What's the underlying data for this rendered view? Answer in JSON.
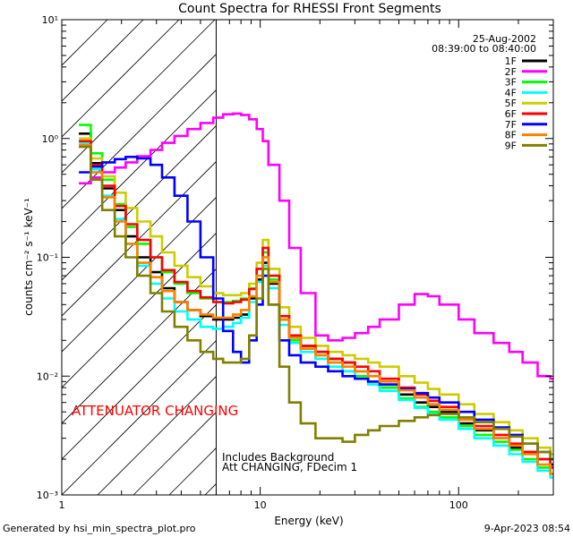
{
  "chart_data": {
    "type": "line",
    "title": "Count Spectra for RHESSI Front Segments",
    "xlabel": "Energy (keV)",
    "ylabel": "counts cm⁻² s⁻¹ keV⁻¹",
    "x_scale": "log",
    "y_scale": "log",
    "xlim": [
      1,
      300
    ],
    "ylim": [
      0.001,
      10
    ],
    "x_ticks": [
      {
        "value": 1,
        "label": "1"
      },
      {
        "value": 10,
        "label": "10"
      },
      {
        "value": 100,
        "label": "100"
      }
    ],
    "y_ticks": [
      {
        "value": 0.001,
        "label": "10⁻³"
      },
      {
        "value": 0.01,
        "label": "10⁻²"
      },
      {
        "value": 0.1,
        "label": "10⁻¹"
      },
      {
        "value": 1,
        "label": "10⁰"
      },
      {
        "value": 10,
        "label": "10¹"
      }
    ],
    "date": "25-Aug-2002",
    "time_range": "08:39:00 to 08:40:00",
    "hatched_region": [
      1,
      6
    ],
    "annotations": {
      "attenuator": "ATTENUATOR CHANGING",
      "background": "Includes Background",
      "att_state": "Att CHANGING, FDecim 1"
    },
    "footer_left": "Generated by hsi_min_spectra_plot.pro",
    "footer_right": "9-Apr-2023 08:54",
    "series": [
      {
        "name": "1F",
        "color": "#000000",
        "x": [
          1.22,
          1.4,
          1.6,
          1.85,
          2.1,
          2.4,
          2.8,
          3.2,
          3.7,
          4.3,
          5.0,
          5.8,
          6.5,
          7.3,
          8.0,
          8.8,
          9.6,
          10.3,
          11.0,
          12.5,
          14,
          16,
          19,
          22,
          26,
          30,
          35,
          40,
          50,
          60,
          70,
          80,
          100,
          120,
          150,
          180,
          210,
          250,
          290
        ],
        "y": [
          1.1,
          0.62,
          0.38,
          0.25,
          0.15,
          0.1,
          0.075,
          0.055,
          0.042,
          0.036,
          0.032,
          0.03,
          0.03,
          0.031,
          0.033,
          0.045,
          0.065,
          0.09,
          0.06,
          0.03,
          0.022,
          0.018,
          0.016,
          0.014,
          0.013,
          0.011,
          0.009,
          0.008,
          0.007,
          0.006,
          0.0055,
          0.005,
          0.004,
          0.0035,
          0.003,
          0.0025,
          0.0023,
          0.002,
          0.0018
        ]
      },
      {
        "name": "2F",
        "color": "#ff00ff",
        "x": [
          1.22,
          1.4,
          1.6,
          1.85,
          2.1,
          2.4,
          2.8,
          3.2,
          3.7,
          4.3,
          5.0,
          5.8,
          6.5,
          7.3,
          8.0,
          8.8,
          9.6,
          10.3,
          11.0,
          12.5,
          14,
          16,
          19,
          22,
          26,
          30,
          35,
          40,
          50,
          60,
          70,
          80,
          100,
          120,
          150,
          180,
          210,
          250,
          290
        ],
        "y": [
          0.42,
          0.47,
          0.52,
          0.57,
          0.63,
          0.71,
          0.8,
          0.92,
          1.05,
          1.2,
          1.35,
          1.5,
          1.6,
          1.62,
          1.58,
          1.45,
          1.2,
          0.95,
          0.6,
          0.3,
          0.12,
          0.05,
          0.022,
          0.02,
          0.021,
          0.023,
          0.026,
          0.03,
          0.04,
          0.049,
          0.047,
          0.04,
          0.03,
          0.023,
          0.019,
          0.016,
          0.013,
          0.01,
          0.0095
        ]
      },
      {
        "name": "3F",
        "color": "#00ff00",
        "x": [
          1.22,
          1.4,
          1.6,
          1.85,
          2.1,
          2.4,
          2.8,
          3.2,
          3.7,
          4.3,
          5.0,
          5.8,
          6.5,
          7.3,
          8.0,
          8.8,
          9.6,
          10.3,
          11.0,
          12.5,
          14,
          16,
          19,
          22,
          26,
          30,
          35,
          40,
          50,
          60,
          70,
          80,
          100,
          120,
          150,
          180,
          210,
          250,
          290
        ],
        "y": [
          1.3,
          0.75,
          0.45,
          0.28,
          0.18,
          0.13,
          0.1,
          0.075,
          0.06,
          0.05,
          0.045,
          0.042,
          0.042,
          0.043,
          0.045,
          0.055,
          0.08,
          0.11,
          0.065,
          0.03,
          0.02,
          0.017,
          0.015,
          0.013,
          0.012,
          0.01,
          0.009,
          0.008,
          0.0065,
          0.0055,
          0.005,
          0.0045,
          0.0038,
          0.0032,
          0.0028,
          0.0024,
          0.002,
          0.0017,
          0.0015
        ]
      },
      {
        "name": "4F",
        "color": "#00ffff",
        "x": [
          1.22,
          1.4,
          1.6,
          1.85,
          2.1,
          2.4,
          2.8,
          3.2,
          3.7,
          4.3,
          5.0,
          5.8,
          6.5,
          7.3,
          8.0,
          8.8,
          9.6,
          10.3,
          11.0,
          12.5,
          14,
          16,
          19,
          22,
          26,
          30,
          35,
          40,
          50,
          60,
          70,
          80,
          100,
          120,
          150,
          180,
          210,
          250,
          290
        ],
        "y": [
          0.92,
          0.55,
          0.33,
          0.21,
          0.13,
          0.085,
          0.06,
          0.045,
          0.035,
          0.03,
          0.026,
          0.025,
          0.026,
          0.028,
          0.031,
          0.042,
          0.062,
          0.085,
          0.055,
          0.027,
          0.019,
          0.016,
          0.014,
          0.012,
          0.011,
          0.0095,
          0.0085,
          0.0075,
          0.0063,
          0.0054,
          0.0048,
          0.0043,
          0.0036,
          0.003,
          0.0026,
          0.0022,
          0.0019,
          0.0016,
          0.0014
        ]
      },
      {
        "name": "5F",
        "color": "#cccc00",
        "x": [
          1.22,
          1.4,
          1.6,
          1.85,
          2.1,
          2.4,
          2.8,
          3.2,
          3.7,
          4.3,
          5.0,
          5.8,
          6.5,
          7.3,
          8.0,
          8.8,
          9.6,
          10.3,
          11.0,
          12.5,
          14,
          16,
          19,
          22,
          26,
          30,
          35,
          40,
          50,
          60,
          70,
          80,
          100,
          120,
          150,
          180,
          210,
          250,
          290
        ],
        "y": [
          1.0,
          0.68,
          0.48,
          0.35,
          0.26,
          0.2,
          0.15,
          0.11,
          0.085,
          0.068,
          0.057,
          0.05,
          0.048,
          0.048,
          0.05,
          0.06,
          0.09,
          0.14,
          0.08,
          0.038,
          0.026,
          0.021,
          0.018,
          0.016,
          0.015,
          0.014,
          0.013,
          0.012,
          0.01,
          0.0088,
          0.0078,
          0.007,
          0.0058,
          0.0048,
          0.0041,
          0.0035,
          0.003,
          0.0025,
          0.0022
        ]
      },
      {
        "name": "6F",
        "color": "#ff0000",
        "x": [
          1.22,
          1.4,
          1.6,
          1.85,
          2.1,
          2.4,
          2.8,
          3.2,
          3.7,
          4.3,
          5.0,
          5.8,
          6.5,
          7.3,
          8.0,
          8.8,
          9.6,
          10.3,
          11.0,
          12.5,
          14,
          16,
          19,
          22,
          26,
          30,
          35,
          40,
          50,
          60,
          70,
          80,
          100,
          120,
          150,
          180,
          210,
          250,
          290
        ],
        "y": [
          0.95,
          0.6,
          0.4,
          0.27,
          0.19,
          0.14,
          0.1,
          0.078,
          0.062,
          0.052,
          0.046,
          0.042,
          0.041,
          0.042,
          0.044,
          0.054,
          0.08,
          0.12,
          0.07,
          0.032,
          0.022,
          0.018,
          0.016,
          0.014,
          0.013,
          0.012,
          0.011,
          0.0095,
          0.008,
          0.007,
          0.0062,
          0.0055,
          0.0045,
          0.0038,
          0.0032,
          0.0027,
          0.0023,
          0.002,
          0.0017
        ]
      },
      {
        "name": "7F",
        "color": "#0000ff",
        "x": [
          1.22,
          1.4,
          1.6,
          1.85,
          2.1,
          2.4,
          2.8,
          3.2,
          3.7,
          4.3,
          5.0,
          5.8,
          6.5,
          7.3,
          8.0,
          8.8,
          9.6,
          10.3,
          11.0,
          12.5,
          14,
          16,
          19,
          22,
          26,
          30,
          35,
          40,
          50,
          60,
          70,
          80,
          100,
          120,
          150,
          180,
          210,
          250,
          290
        ],
        "y": [
          0.52,
          0.58,
          0.63,
          0.67,
          0.7,
          0.68,
          0.6,
          0.47,
          0.33,
          0.2,
          0.1,
          0.045,
          0.024,
          0.016,
          0.013,
          0.02,
          0.04,
          0.07,
          0.04,
          0.02,
          0.015,
          0.013,
          0.012,
          0.011,
          0.01,
          0.0095,
          0.009,
          0.0085,
          0.0078,
          0.0072,
          0.0066,
          0.006,
          0.005,
          0.0043,
          0.0037,
          0.0032,
          0.0027,
          0.0023,
          0.002
        ]
      },
      {
        "name": "8F",
        "color": "#ff8000",
        "x": [
          1.22,
          1.4,
          1.6,
          1.85,
          2.1,
          2.4,
          2.8,
          3.2,
          3.7,
          4.3,
          5.0,
          5.8,
          6.5,
          7.3,
          8.0,
          8.8,
          9.6,
          10.3,
          11.0,
          12.5,
          14,
          16,
          19,
          22,
          26,
          30,
          35,
          40,
          50,
          60,
          70,
          80,
          100,
          120,
          150,
          180,
          210,
          250,
          290
        ],
        "y": [
          0.88,
          0.52,
          0.32,
          0.2,
          0.13,
          0.09,
          0.068,
          0.052,
          0.042,
          0.036,
          0.033,
          0.031,
          0.031,
          0.033,
          0.036,
          0.047,
          0.07,
          0.1,
          0.062,
          0.03,
          0.021,
          0.017,
          0.015,
          0.013,
          0.012,
          0.011,
          0.01,
          0.009,
          0.0076,
          0.0066,
          0.0058,
          0.0052,
          0.0043,
          0.0036,
          0.003,
          0.0026,
          0.0022,
          0.0018,
          0.0015
        ]
      },
      {
        "name": "9F",
        "color": "#808000",
        "x": [
          1.22,
          1.4,
          1.6,
          1.85,
          2.1,
          2.4,
          2.8,
          3.2,
          3.7,
          4.3,
          5.0,
          5.8,
          6.5,
          7.3,
          8.0,
          8.8,
          9.6,
          10.3,
          11.0,
          12.5,
          14,
          16,
          19,
          22,
          26,
          30,
          35,
          40,
          50,
          60,
          70,
          80,
          100,
          120,
          150,
          180,
          210,
          250,
          290
        ],
        "y": [
          0.85,
          0.45,
          0.25,
          0.15,
          0.1,
          0.07,
          0.05,
          0.035,
          0.026,
          0.02,
          0.016,
          0.014,
          0.013,
          0.013,
          0.014,
          0.022,
          0.045,
          0.08,
          0.04,
          0.012,
          0.006,
          0.004,
          0.003,
          0.003,
          0.0028,
          0.0032,
          0.0035,
          0.0038,
          0.0042,
          0.0045,
          0.0047,
          0.0048,
          0.0045,
          0.0041,
          0.0036,
          0.0031,
          0.0027,
          0.0023,
          0.002
        ]
      }
    ]
  }
}
